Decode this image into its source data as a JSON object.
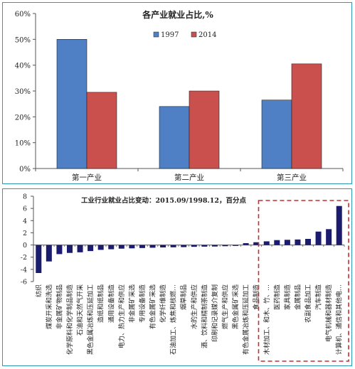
{
  "chart_data": [
    {
      "type": "bar",
      "title": "各产业就业占比,%",
      "categories": [
        "第一产业",
        "第二产业",
        "第三产业"
      ],
      "series": [
        {
          "name": "1997",
          "color": "#4f7fc4",
          "values": [
            50.0,
            24.0,
            26.5
          ]
        },
        {
          "name": "2014",
          "color": "#c9504d",
          "values": [
            29.5,
            30.0,
            40.5
          ]
        }
      ],
      "yticks": [
        "0%",
        "10%",
        "20%",
        "30%",
        "40%",
        "50%",
        "60%"
      ],
      "ylim": [
        0,
        60
      ],
      "grid": false,
      "legend": "top-center"
    },
    {
      "type": "bar",
      "title": "工业行业就业占比变动：2015.09/1998.12，百分点",
      "color": "#1c1c6e",
      "highlight_color": "#cc2b2b",
      "categories": [
        "纺织",
        "煤炭开采和洗选",
        "非金属矿物制品",
        "化学原料和化学制品制造",
        "石油和天然气开采",
        "黑色金属冶炼和压延加工",
        "造纸和纸制品",
        "通用设备制造",
        "电力、热力生产和供应",
        "非金属矿采选",
        "专用设备制造",
        "有色金属矿采选",
        "化学纤维制造",
        "石油加工、炼焦和核燃…",
        "烟草制品",
        "水的生产和供应",
        "酒、饮料和精制茶制造",
        "印刷和记录媒介复制",
        "燃气生产和供应",
        "黑色金属矿采选",
        "有色金属冶炼和压延加工",
        "食品制造",
        "木材加工、和木、竹、…",
        "医药制造",
        "家具制造",
        "金属制品",
        "农副食品加工",
        "汽车制造",
        "电气机械和器材制造",
        "计算机、通信和其他电…"
      ],
      "values": [
        -4.6,
        -2.7,
        -1.5,
        -1.3,
        -1.2,
        -1.0,
        -0.8,
        -0.7,
        -0.6,
        -0.55,
        -0.5,
        -0.45,
        -0.4,
        -0.38,
        -0.35,
        -0.3,
        -0.27,
        -0.25,
        -0.2,
        -0.15,
        0.3,
        0.45,
        0.6,
        0.8,
        0.85,
        0.9,
        1.0,
        2.2,
        2.6,
        6.4
      ],
      "highlight_from_index": 22,
      "yticks": [
        "-6",
        "-4",
        "-2",
        "0",
        "2",
        "4",
        "6",
        "8"
      ],
      "ylim": [
        -6,
        8
      ],
      "grid": false,
      "legend": "none"
    }
  ]
}
